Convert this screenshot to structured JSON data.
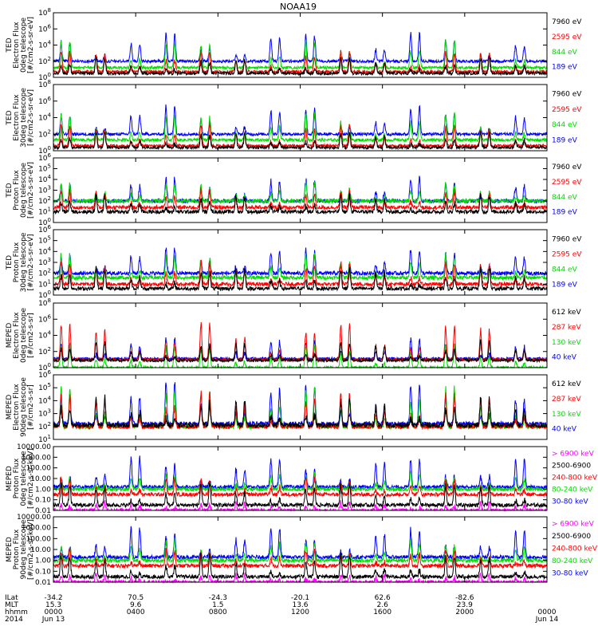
{
  "chart_data": {
    "type": "line",
    "title": "NOAA19",
    "time_range_hours": [
      0,
      24
    ],
    "panels": [
      {
        "id": "ted-e-0",
        "ylabel": [
          "TED",
          "Electron Flux",
          "0deg telescope",
          "[#/cm2-s-sr-eV]"
        ],
        "yscale": "log",
        "ylim_exp": [
          0,
          8
        ],
        "tick_exps": [
          0,
          2,
          4,
          6,
          8
        ],
        "series": [
          {
            "name": "7960 eV",
            "color": "#000000"
          },
          {
            "name": "2595 eV",
            "color": "#ff0000"
          },
          {
            "name": "844 eV",
            "color": "#00dd00"
          },
          {
            "name": "189 eV",
            "color": "#0000ff"
          }
        ],
        "profile_exp": [
          {
            "base": 0.5,
            "peak": 2.3
          },
          {
            "base": 0.7,
            "peak": 3.3
          },
          {
            "base": 1.2,
            "peak": 4.5
          },
          {
            "base": 2.0,
            "peak": 5.5
          }
        ]
      },
      {
        "id": "ted-e-30",
        "ylabel": [
          "TED",
          "Electron Flux",
          "30deg telescope",
          "[#/cm2-s-sr-eV]"
        ],
        "yscale": "log",
        "ylim_exp": [
          0,
          8
        ],
        "tick_exps": [
          0,
          2,
          4,
          6,
          8
        ],
        "series": [
          {
            "name": "7960 eV",
            "color": "#000000"
          },
          {
            "name": "2595 eV",
            "color": "#ff0000"
          },
          {
            "name": "844 eV",
            "color": "#00dd00"
          },
          {
            "name": "189 eV",
            "color": "#0000ff"
          }
        ],
        "profile_exp": [
          {
            "base": 0.4,
            "peak": 2.2
          },
          {
            "base": 0.6,
            "peak": 3.2
          },
          {
            "base": 1.3,
            "peak": 4.5
          },
          {
            "base": 2.0,
            "peak": 5.4
          }
        ]
      },
      {
        "id": "ted-p-0",
        "ylabel": [
          "TED",
          "Proton Flux",
          "0deg telescope",
          "[#/cm2-s-sr-eV]"
        ],
        "yscale": "log",
        "ylim_exp": [
          0,
          6
        ],
        "tick_exps": [
          0,
          1,
          2,
          3,
          4,
          5,
          6
        ],
        "series": [
          {
            "name": "7960 eV",
            "color": "#000000"
          },
          {
            "name": "2595 eV",
            "color": "#ff0000"
          },
          {
            "name": "844 eV",
            "color": "#00dd00"
          },
          {
            "name": "189 eV",
            "color": "#0000ff"
          }
        ],
        "profile_exp": [
          {
            "base": 1.0,
            "peak": 2.5
          },
          {
            "base": 1.4,
            "peak": 3.0
          },
          {
            "base": 2.0,
            "peak": 3.6
          },
          {
            "base": 2.0,
            "peak": 4.2
          }
        ]
      },
      {
        "id": "ted-p-30",
        "ylabel": [
          "TED",
          "Proton Flux",
          "30deg telescope",
          "[#/cm2-s-sr-eV]"
        ],
        "yscale": "log",
        "ylim_exp": [
          0,
          6
        ],
        "tick_exps": [
          0,
          1,
          2,
          3,
          4,
          5,
          6
        ],
        "series": [
          {
            "name": "7960 eV",
            "color": "#000000"
          },
          {
            "name": "2595 eV",
            "color": "#ff0000"
          },
          {
            "name": "844 eV",
            "color": "#00dd00"
          },
          {
            "name": "189 eV",
            "color": "#0000ff"
          }
        ],
        "profile_exp": [
          {
            "base": 0.6,
            "peak": 2.5
          },
          {
            "base": 1.0,
            "peak": 3.0
          },
          {
            "base": 1.6,
            "peak": 3.7
          },
          {
            "base": 2.0,
            "peak": 4.3
          }
        ]
      },
      {
        "id": "meped-e-0",
        "ylabel": [
          "MEPED",
          "Electron Flux",
          "0deg telescope",
          "[#/cm2-s-sr]"
        ],
        "yscale": "log",
        "ylim_exp": [
          0,
          8
        ],
        "tick_exps": [
          0,
          2,
          4,
          6,
          8
        ],
        "series": [
          {
            "name": "612 keV",
            "color": "#000000"
          },
          {
            "name": "287 keV",
            "color": "#ff0000"
          },
          {
            "name": "130 keV",
            "color": "#00dd00"
          },
          {
            "name": "40 keV",
            "color": "#0000ff"
          }
        ],
        "profile_exp": [
          {
            "base": 0.9,
            "peak": 3.2
          },
          {
            "base": 1.0,
            "peak": 5.5
          },
          {
            "base": 0.0,
            "peak": 2.8
          },
          {
            "base": 1.1,
            "peak": 3.6
          }
        ]
      },
      {
        "id": "meped-e-90",
        "ylabel": [
          "MEPED",
          "Electron Flux",
          "90deg telescope",
          "[#/cm2-s-sr]"
        ],
        "yscale": "log",
        "ylim_exp": [
          1,
          6
        ],
        "tick_exps": [
          1,
          2,
          3,
          4,
          5,
          6
        ],
        "series": [
          {
            "name": "612 keV",
            "color": "#000000"
          },
          {
            "name": "287 keV",
            "color": "#ff0000"
          },
          {
            "name": "130 keV",
            "color": "#00dd00"
          },
          {
            "name": "40 keV",
            "color": "#0000ff"
          }
        ],
        "profile_exp": [
          {
            "base": 2.1,
            "peak": 4.2
          },
          {
            "base": 2.0,
            "peak": 4.6
          },
          {
            "base": 2.0,
            "peak": 5.0
          },
          {
            "base": 2.2,
            "peak": 5.4
          }
        ]
      },
      {
        "id": "meped-p-0",
        "ylabel": [
          "MEPED",
          "Proton Flux",
          "0deg telescope",
          "[#/cm2-s-sr-keV]"
        ],
        "yscale": "log",
        "ylim_exp": [
          -2,
          4
        ],
        "tick_exps": [
          -2,
          -1,
          0,
          1,
          2,
          3,
          4
        ],
        "tick_labels": [
          "0.01",
          "0.10",
          "1.00",
          "10.00",
          "100.00",
          "1000.00",
          "10000.00"
        ],
        "series": [
          {
            "name": "> 6900 keV",
            "color": "#ff00ff"
          },
          {
            "name": "2500-6900",
            "color": "#000000"
          },
          {
            "name": "240-800 keV",
            "color": "#ff0000"
          },
          {
            "name": "80-240 keV",
            "color": "#00dd00"
          },
          {
            "name": "30-80 keV",
            "color": "#0000ff"
          }
        ],
        "profile_exp": [
          {
            "base": -2.0,
            "peak": -1.3
          },
          {
            "base": -1.5,
            "peak": 0.5
          },
          {
            "base": -0.5,
            "peak": 1.0
          },
          {
            "base": 0.0,
            "peak": 1.5
          },
          {
            "base": 0.2,
            "peak": 3.0
          }
        ]
      },
      {
        "id": "meped-p-90",
        "ylabel": [
          "MEPED",
          "Proton Flux",
          "90deg telescope",
          "[#/cm2-s-sr-keV]"
        ],
        "yscale": "log",
        "ylim_exp": [
          -2,
          4
        ],
        "tick_exps": [
          -2,
          -1,
          0,
          1,
          2,
          3,
          4
        ],
        "tick_labels": [
          "0.01",
          "0.10",
          "1.00",
          "10.00",
          "100.00",
          "1000.00",
          "10000.00"
        ],
        "series": [
          {
            "name": "> 6900 keV",
            "color": "#ff00ff"
          },
          {
            "name": "2500-6900",
            "color": "#000000"
          },
          {
            "name": "240-800 keV",
            "color": "#ff0000"
          },
          {
            "name": "80-240 keV",
            "color": "#00dd00"
          },
          {
            "name": "30-80 keV",
            "color": "#0000ff"
          }
        ],
        "profile_exp": [
          {
            "base": -2.0,
            "peak": -1.3
          },
          {
            "base": -1.5,
            "peak": 0.5
          },
          {
            "base": -0.5,
            "peak": 1.0
          },
          {
            "base": 0.0,
            "peak": 1.8
          },
          {
            "base": 0.3,
            "peak": 3.0
          }
        ]
      }
    ],
    "x_axis": {
      "row_labels": [
        "ILat",
        "MLT",
        "hhmm",
        "2014"
      ],
      "ticks": [
        {
          "hour": 0,
          "ilat": "-34.2",
          "mlt": "15.3",
          "hhmm": "0000",
          "date": "Jun 13"
        },
        {
          "hour": 4,
          "ilat": "70.5",
          "mlt": "9.6",
          "hhmm": "0400",
          "date": ""
        },
        {
          "hour": 8,
          "ilat": "-24.3",
          "mlt": "1.5",
          "hhmm": "0800",
          "date": ""
        },
        {
          "hour": 12,
          "ilat": "-20.1",
          "mlt": "13.6",
          "hhmm": "1200",
          "date": ""
        },
        {
          "hour": 16,
          "ilat": "62.6",
          "mlt": "2.6",
          "hhmm": "1600",
          "date": ""
        },
        {
          "hour": 20,
          "ilat": "-82.6",
          "mlt": "23.9",
          "hhmm": "2000",
          "date": ""
        },
        {
          "hour": 24,
          "ilat": "",
          "mlt": "",
          "hhmm": "0000",
          "date": "Jun 14"
        }
      ]
    },
    "orbit": {
      "period_minutes": 102,
      "passes_per_day": 28
    }
  }
}
